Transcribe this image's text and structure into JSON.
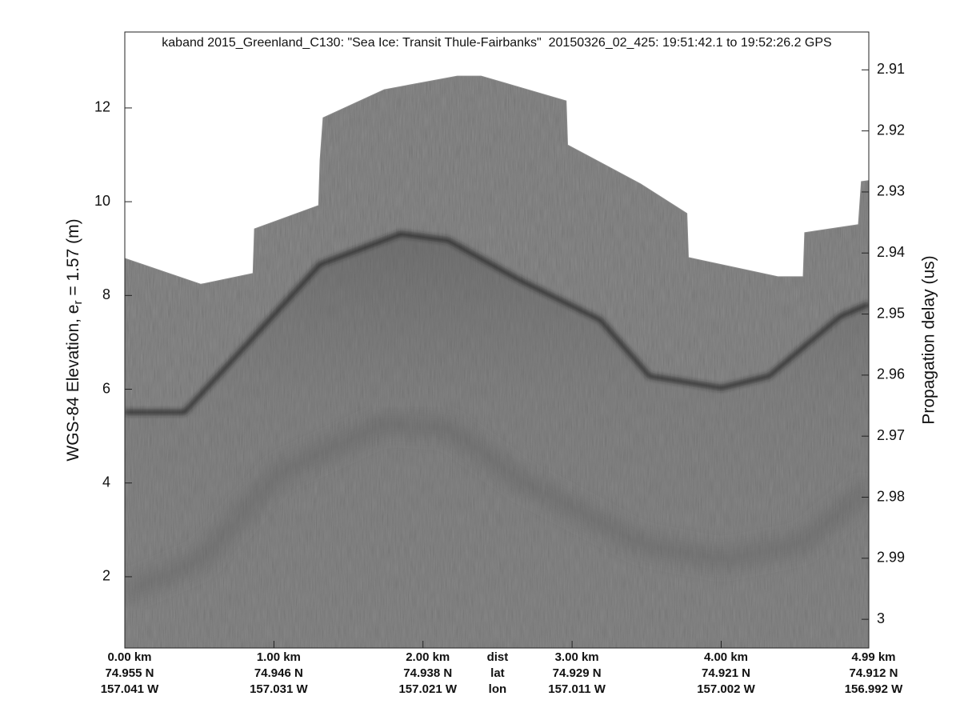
{
  "chart_data": {
    "type": "echogram",
    "title": "kaband 2015_Greenland_C130: \"Sea Ice: Transit Thule-Fairbanks\"  20150326_02_425: 19:51:42.1 to 19:52:26.2 GPS",
    "ylabel": "WGS-84 Elevation, e",
    "ylabel_sub": "r",
    "ylabel_end": " = 1.57 (m)",
    "y2label": "Propagation delay (us)",
    "xlim": [
      0,
      4.99
    ],
    "ylim": [
      0.48,
      13.62
    ],
    "yticks": [
      2,
      4,
      6,
      8,
      10,
      12
    ],
    "y2lim": [
      3.0047,
      2.9038
    ],
    "y2ticks": [
      2.91,
      2.92,
      2.93,
      2.94,
      2.95,
      2.96,
      2.97,
      2.98,
      2.99,
      3
    ],
    "xticks": [
      {
        "value": 0,
        "label": "0.00 km"
      },
      {
        "value": 1,
        "label": "1.00 km"
      },
      {
        "value": 2,
        "label": "2.00 km"
      },
      {
        "value": 3,
        "label": "3.00 km"
      },
      {
        "value": 4,
        "label": "4.00 km"
      },
      {
        "value": 4.99,
        "label": "4.99 km"
      }
    ],
    "lat_labels": [
      "74.955 N",
      "74.946 N",
      "74.938 N",
      "74.929 N",
      "74.921 N",
      "74.912 N"
    ],
    "lon_labels": [
      "157.041 W",
      "157.031 W",
      "157.021 W",
      "157.011 W",
      "157.002 W",
      "156.992 W"
    ],
    "row_names": [
      "dist",
      "lat",
      "lon"
    ],
    "echo_top": {
      "color": "#8c8c8c",
      "x": [
        0,
        0.51,
        0.86,
        0.87,
        1.3,
        1.31,
        1.33,
        1.74,
        2.23,
        2.39,
        2.96,
        2.97,
        3.46,
        3.77,
        3.78,
        4.38,
        4.55,
        4.56,
        4.92,
        4.94,
        4.99
      ],
      "values": [
        8.79,
        8.24,
        8.47,
        9.42,
        9.92,
        10.89,
        11.79,
        12.39,
        12.68,
        12.68,
        12.15,
        11.21,
        10.38,
        9.75,
        8.81,
        8.4,
        8.4,
        9.34,
        9.51,
        10.43,
        10.45
      ]
    },
    "surface": {
      "color": "#1e1e1e",
      "x": [
        0,
        0.4,
        0.77,
        1.31,
        1.85,
        2.17,
        2.65,
        3.19,
        3.52,
        4,
        4.32,
        4.8,
        4.99
      ],
      "values": [
        5.51,
        5.51,
        6.79,
        8.67,
        9.32,
        9.18,
        8.33,
        7.48,
        6.28,
        6.03,
        6.28,
        7.56,
        7.82
      ]
    },
    "multiple": {
      "color": "#5a5a5a",
      "x": [
        0,
        0.51,
        1.04,
        1.74,
        2.17,
        2.65,
        3.46,
        4,
        4.54,
        4.99
      ],
      "values": [
        1.67,
        2.36,
        4.23,
        5.26,
        5.17,
        4.06,
        2.7,
        2.36,
        2.7,
        3.89
      ]
    }
  }
}
